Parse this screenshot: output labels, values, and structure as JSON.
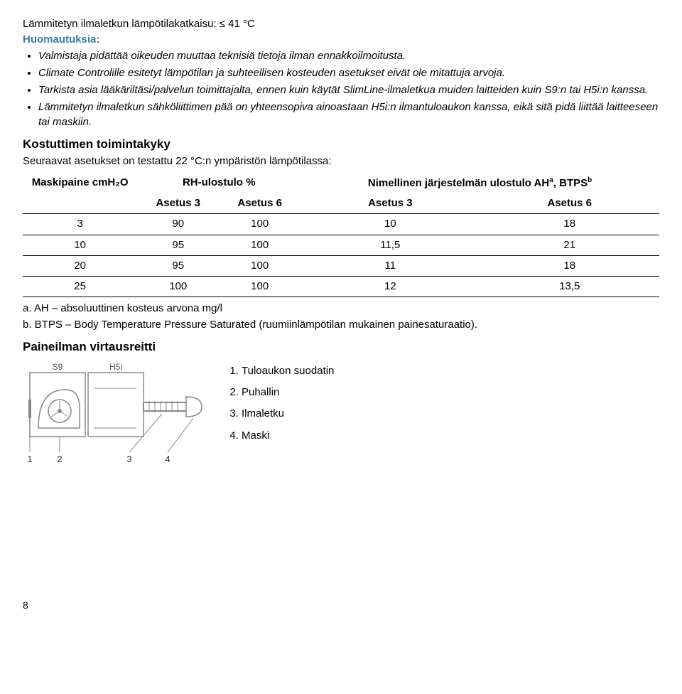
{
  "line1": "Lämmitetyn ilmaletkun lämpötilakatkaisu: ≤ 41 °C",
  "line2": "Huomautuksia:",
  "bullets": [
    {
      "text": "Valmistaja pidättää oikeuden muuttaa teknisiä tietoja ilman ennakkoilmoitusta.",
      "italic": true
    },
    {
      "text": "Climate Controlille esitetyt lämpötilan ja suhteellisen kosteuden asetukset eivät ole mitattuja arvoja.",
      "italic": true
    },
    {
      "text": "Tarkista asia lääkäriltäsi/palvelun toimittajalta, ennen kuin käytät SlimLine-ilmaletkua muiden laitteiden kuin S9:n tai H5i:n kanssa.",
      "italic": true
    },
    {
      "text": "Lämmitetyn ilmaletkun sähköliittimen pää on yhteensopiva ainoastaan H5i:n ilmantuloaukon kanssa, eikä sitä pidä liittää laitteeseen tai maskiin.",
      "italic": true
    }
  ],
  "section_title": "Kostuttimen toimintakyky",
  "section_intro": "Seuraavat asetukset on testattu 22 °C:n ympäristön lämpötilassa:",
  "table": {
    "col1_header": "Maskipaine cmH₂O",
    "group1_header": "RH-ulostulo %",
    "group2_header": "Nimellinen järjestelmän ulostulo AH",
    "group2_sup": "a",
    "group2_tail": ", BTPS",
    "group2_sup2": "b",
    "sub_headers": [
      "Asetus 3",
      "Asetus 6",
      "Asetus 3",
      "Asetus 6"
    ],
    "rows": [
      [
        "3",
        "90",
        "100",
        "10",
        "18"
      ],
      [
        "10",
        "95",
        "100",
        "11,5",
        "21"
      ],
      [
        "20",
        "95",
        "100",
        "11",
        "18"
      ],
      [
        "25",
        "100",
        "100",
        "12",
        "13,5"
      ]
    ]
  },
  "footnote_a": "a. AH – absoluuttinen kosteus arvona mg/l",
  "footnote_b": "b. BTPS – Body Temperature Pressure Saturated (ruumiinlämpötilan mukainen painesaturaatio).",
  "airflow_title": "Paineilman virtausreitti",
  "diagram_labels": {
    "s9": "S9",
    "h5i": "H5i",
    "n1": "1",
    "n2": "2",
    "n3": "3",
    "n4": "4"
  },
  "airflow_items": [
    "Tuloaukon suodatin",
    "Puhallin",
    "Ilmaletku",
    "Maski"
  ],
  "page_number": "8"
}
